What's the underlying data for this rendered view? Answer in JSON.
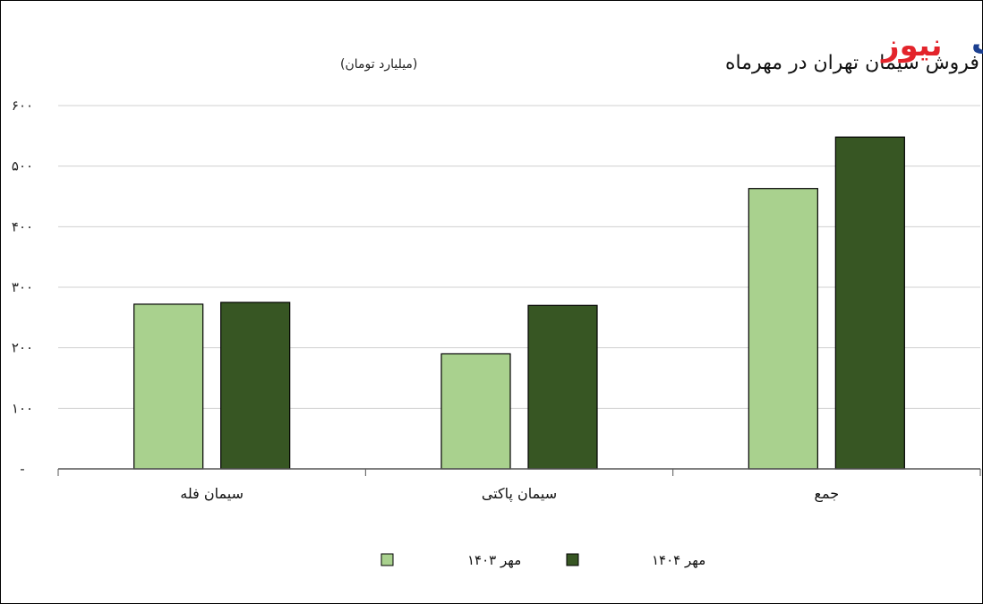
{
  "logo": {
    "part1": "تجارت",
    "part2": "نیوز"
  },
  "chart_data": {
    "type": "bar",
    "title": "درآمد فروش سیمان تهران در مهرماه",
    "subtitle": "(میلیارد تومان)",
    "categories": [
      "سیمان فله",
      "سیمان پاکتی",
      "جمع"
    ],
    "series": [
      {
        "name": "مهر ۱۴۰۳",
        "color": "#a9d18e",
        "values": [
          272,
          190,
          463
        ]
      },
      {
        "name": "مهر ۱۴۰۴",
        "color": "#375623",
        "values": [
          275,
          270,
          548
        ]
      }
    ],
    "yticks": [
      "-",
      "۱۰۰",
      "۲۰۰",
      "۳۰۰",
      "۴۰۰",
      "۵۰۰",
      "۶۰۰"
    ],
    "ylim": [
      0,
      600
    ],
    "grid": true,
    "legend_position": "bottom"
  }
}
